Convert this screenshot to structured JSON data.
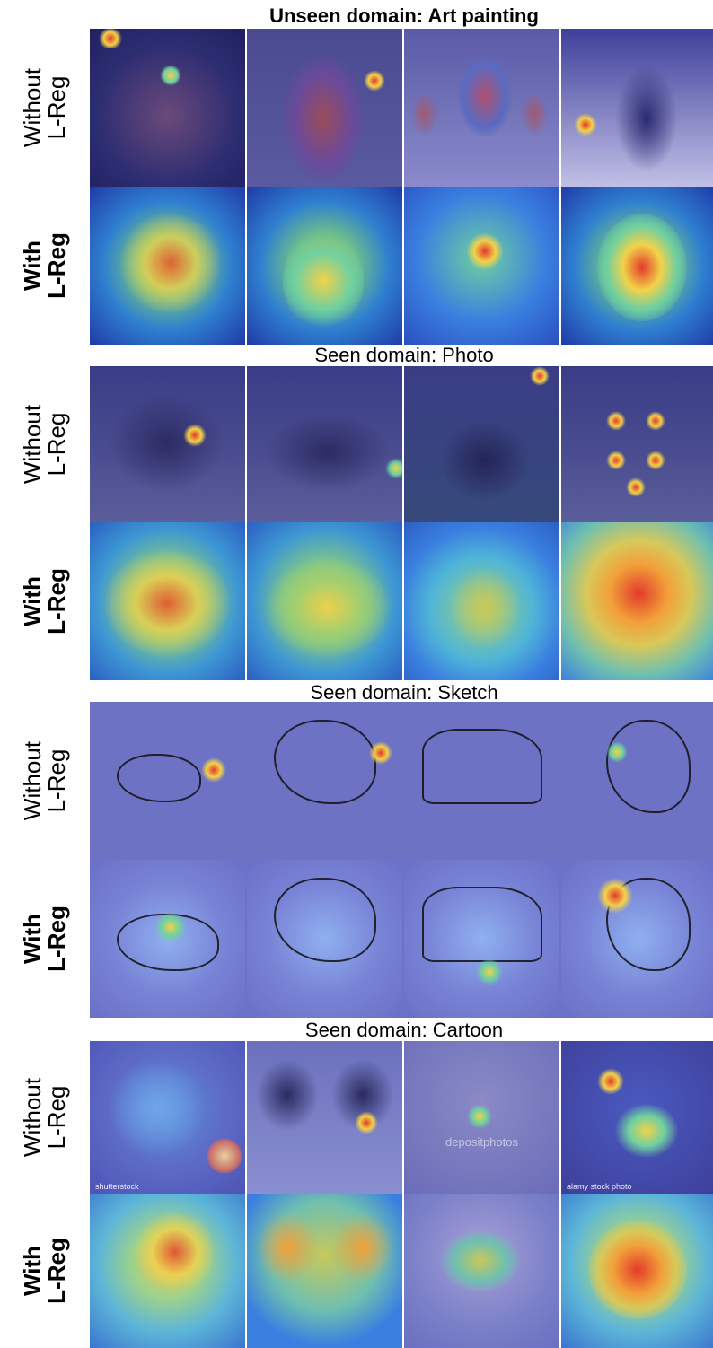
{
  "sections": [
    {
      "title": "Unseen domain: Art painting",
      "title_bold": true,
      "rows": [
        {
          "label_lines": [
            "Without",
            "L-Reg"
          ],
          "label_bold": false
        },
        {
          "label_lines": [
            "With",
            "L-Reg"
          ],
          "label_bold": true
        }
      ]
    },
    {
      "title": "Seen domain: Photo",
      "title_bold": false,
      "rows": [
        {
          "label_lines": [
            "Without",
            "L-Reg"
          ],
          "label_bold": false
        },
        {
          "label_lines": [
            "With",
            "L-Reg"
          ],
          "label_bold": true
        }
      ]
    },
    {
      "title": "Seen domain: Sketch",
      "title_bold": false,
      "rows": [
        {
          "label_lines": [
            "Without",
            "L-Reg"
          ],
          "label_bold": false
        },
        {
          "label_lines": [
            "With",
            "L-Reg"
          ],
          "label_bold": true
        }
      ]
    },
    {
      "title": "Seen domain: Cartoon",
      "title_bold": false,
      "rows": [
        {
          "label_lines": [
            "Without",
            "L-Reg"
          ],
          "label_bold": false
        },
        {
          "label_lines": [
            "With",
            "L-Reg"
          ],
          "label_bold": true
        }
      ]
    }
  ],
  "cartoon_captions": {
    "shutterstock": "shutterstock",
    "depositphotos": "depositphotos",
    "alamy": "alamy stock photo"
  },
  "colors": {
    "heat_hot": "#e23b2a",
    "heat_warm": "#f2d24a",
    "heat_mid": "#6fd0a0",
    "heat_cool": "#3a7fe0",
    "overlay_blue": "#3e3f9a"
  }
}
